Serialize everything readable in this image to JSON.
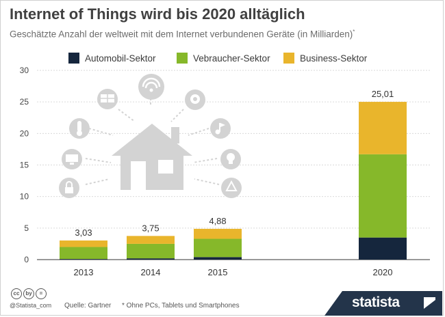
{
  "title": "Internet of Things wird bis 2020 alltäglich",
  "subtitle": "Geschätzte Anzahl der weltweit mit dem Internet verbundenen Geräte (in Milliarden)",
  "subtitle_mark": "*",
  "colors": {
    "automobil": "#15263d",
    "verbraucher": "#86b82a",
    "business": "#e9b52c",
    "illustration": "#d3d3d3",
    "grid": "#dadada"
  },
  "icons": [
    "solar-panel",
    "wifi",
    "webcam",
    "thermometer",
    "music",
    "monitor",
    "lightbulb",
    "lock",
    "recycle",
    "house"
  ],
  "chart_data": {
    "type": "bar",
    "stacked": true,
    "categories": [
      "2013",
      "2014",
      "2015",
      "2020"
    ],
    "series": [
      {
        "name": "Automobil-Sektor",
        "color": "#15263d",
        "values": [
          0.1,
          0.2,
          0.4,
          3.5
        ]
      },
      {
        "name": "Vebraucher-Sektor",
        "color": "#86b82a",
        "values": [
          1.9,
          2.3,
          2.9,
          13.2
        ]
      },
      {
        "name": "Business-Sektor",
        "color": "#e9b52c",
        "values": [
          1.03,
          1.25,
          1.58,
          8.31
        ]
      }
    ],
    "totals": [
      3.03,
      3.75,
      4.88,
      25.01
    ],
    "total_labels": [
      "3,03",
      "3,75",
      "4,88",
      "25,01"
    ],
    "ylim": [
      0,
      30
    ],
    "yticks": [
      0,
      5,
      10,
      15,
      20,
      25,
      30
    ],
    "grid": true,
    "legend_position": "top"
  },
  "footer": {
    "cc_icons": [
      "cc",
      "by",
      "="
    ],
    "handle": "@Statista_com",
    "source": "Quelle: Gartner",
    "note": "* Ohne PCs, Tablets und Smartphones",
    "brand": "statista"
  }
}
